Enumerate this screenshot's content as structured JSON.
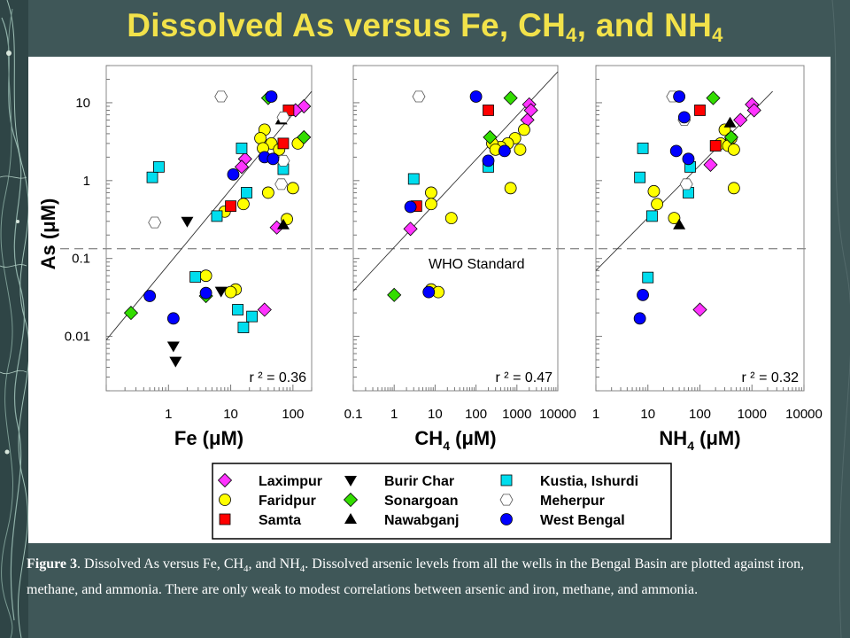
{
  "title": {
    "main": "Dissolved As versus Fe, CH",
    "sub1": "4",
    "mid": ", and NH",
    "sub2": "4"
  },
  "caption": {
    "label": "Figure 3",
    "text_before_sub1": ".  Dissolved As versus Fe, CH",
    "sub1": "4",
    "text_before_sub2": ", and NH",
    "sub2": "4",
    "text_after": ".  Dissolved arsenic levels from all the wells in the Bengal Basin are plotted against iron, methane, and ammonia.   There are only weak to modest correlations between arsenic and iron, methane, and ammonia."
  },
  "chart_data": {
    "type": "scatter",
    "y_axis": {
      "label": "As (μM)",
      "scale": "log",
      "range": [
        0.002,
        30
      ],
      "ticks": [
        0.01,
        0.1,
        1,
        10
      ],
      "tick_labels": [
        "0.01",
        "0.1",
        "1",
        "10"
      ]
    },
    "who_standard": {
      "label": "WHO Standard",
      "value": 0.133
    },
    "series_styles": {
      "Laximpur": {
        "shape": "diamond",
        "color": "#ff33ff"
      },
      "Faridpur": {
        "shape": "circle",
        "color": "#ffff00"
      },
      "Samta": {
        "shape": "square",
        "color": "#ff0000"
      },
      "Burir Char": {
        "shape": "triangle-down",
        "color": "#000000"
      },
      "Sonargoan": {
        "shape": "diamond",
        "color": "#33dd00"
      },
      "Nawabganj": {
        "shape": "triangle-up",
        "color": "#000000"
      },
      "Kustia, Ishurdi": {
        "shape": "square",
        "color": "#00ddee"
      },
      "Meherpur": {
        "shape": "hexagon",
        "color": "#ffffff"
      },
      "West Bengal": {
        "shape": "circle",
        "color": "#0000ff"
      }
    },
    "legend": {
      "placement": "bottom",
      "entries": [
        {
          "name": "Laximpur"
        },
        {
          "name": "Faridpur"
        },
        {
          "name": "Samta"
        },
        {
          "name": "Burir Char"
        },
        {
          "name": "Sonargoan"
        },
        {
          "name": "Nawabganj"
        },
        {
          "name": "Kustia, Ishurdi"
        },
        {
          "name": "Meherpur"
        },
        {
          "name": "West Bengal"
        }
      ]
    },
    "panels": [
      {
        "xlabel_main": "Fe (μM)",
        "xlabel_sub": "",
        "x_scale": "log",
        "x_range": [
          0.1,
          200
        ],
        "x_ticks": [
          1,
          10,
          100
        ],
        "x_tick_labels": [
          "1",
          "10",
          "100"
        ],
        "r2": "r ² = 0.36",
        "fit_line": [
          [
            0.1,
            0.009
          ],
          [
            200,
            14
          ]
        ],
        "points": [
          {
            "s": "Laximpur",
            "x": 150,
            "y": 9
          },
          {
            "s": "Laximpur",
            "x": 110,
            "y": 8
          },
          {
            "s": "Laximpur",
            "x": 17,
            "y": 1.9
          },
          {
            "s": "Laximpur",
            "x": 15,
            "y": 1.5
          },
          {
            "s": "Laximpur",
            "x": 55,
            "y": 0.25
          },
          {
            "s": "Laximpur",
            "x": 35,
            "y": 0.022
          },
          {
            "s": "Faridpur",
            "x": 35,
            "y": 4.5
          },
          {
            "s": "Faridpur",
            "x": 30,
            "y": 3.5
          },
          {
            "s": "Faridpur",
            "x": 45,
            "y": 3
          },
          {
            "s": "Faridpur",
            "x": 33,
            "y": 2.6
          },
          {
            "s": "Faridpur",
            "x": 60,
            "y": 2.5
          },
          {
            "s": "Faridpur",
            "x": 120,
            "y": 3
          },
          {
            "s": "Faridpur",
            "x": 100,
            "y": 0.8
          },
          {
            "s": "Faridpur",
            "x": 40,
            "y": 0.7
          },
          {
            "s": "Faridpur",
            "x": 16,
            "y": 0.5
          },
          {
            "s": "Faridpur",
            "x": 8,
            "y": 0.4
          },
          {
            "s": "Faridpur",
            "x": 80,
            "y": 0.32
          },
          {
            "s": "Faridpur",
            "x": 4,
            "y": 0.06
          },
          {
            "s": "Faridpur",
            "x": 12,
            "y": 0.04
          },
          {
            "s": "Faridpur",
            "x": 10,
            "y": 0.037
          },
          {
            "s": "Samta",
            "x": 85,
            "y": 8
          },
          {
            "s": "Samta",
            "x": 70,
            "y": 3
          },
          {
            "s": "Samta",
            "x": 10,
            "y": 0.47
          },
          {
            "s": "Burir Char",
            "x": 2,
            "y": 0.3
          },
          {
            "s": "Burir Char",
            "x": 7,
            "y": 0.038
          },
          {
            "s": "Burir Char",
            "x": 1.2,
            "y": 0.0075
          },
          {
            "s": "Burir Char",
            "x": 1.3,
            "y": 0.0048
          },
          {
            "s": "Sonargoan",
            "x": 40,
            "y": 11.5
          },
          {
            "s": "Sonargoan",
            "x": 150,
            "y": 3.6
          },
          {
            "s": "Sonargoan",
            "x": 0.25,
            "y": 0.02
          },
          {
            "s": "Sonargoan",
            "x": 4,
            "y": 0.033
          },
          {
            "s": "Nawabganj",
            "x": 70,
            "y": 0.27
          },
          {
            "s": "Nawabganj",
            "x": 65,
            "y": 6
          },
          {
            "s": "Kustia, Ishurdi",
            "x": 0.55,
            "y": 1.1
          },
          {
            "s": "Kustia, Ishurdi",
            "x": 0.7,
            "y": 1.5
          },
          {
            "s": "Kustia, Ishurdi",
            "x": 15,
            "y": 2.6
          },
          {
            "s": "Kustia, Ishurdi",
            "x": 18,
            "y": 0.7
          },
          {
            "s": "Kustia, Ishurdi",
            "x": 6,
            "y": 0.35
          },
          {
            "s": "Kustia, Ishurdi",
            "x": 2.7,
            "y": 0.058
          },
          {
            "s": "Kustia, Ishurdi",
            "x": 13,
            "y": 0.022
          },
          {
            "s": "Kustia, Ishurdi",
            "x": 22,
            "y": 0.018
          },
          {
            "s": "Kustia, Ishurdi",
            "x": 16,
            "y": 0.013
          },
          {
            "s": "Kustia, Ishurdi",
            "x": 70,
            "y": 1.4
          },
          {
            "s": "Meherpur",
            "x": 7,
            "y": 12
          },
          {
            "s": "Meherpur",
            "x": 70,
            "y": 6.5
          },
          {
            "s": "Meherpur",
            "x": 70,
            "y": 1.8
          },
          {
            "s": "Meherpur",
            "x": 65,
            "y": 0.9
          },
          {
            "s": "Meherpur",
            "x": 0.6,
            "y": 0.29
          },
          {
            "s": "West Bengal",
            "x": 45,
            "y": 12
          },
          {
            "s": "West Bengal",
            "x": 35,
            "y": 2
          },
          {
            "s": "West Bengal",
            "x": 48,
            "y": 1.9
          },
          {
            "s": "West Bengal",
            "x": 11,
            "y": 1.2
          },
          {
            "s": "West Bengal",
            "x": 0.5,
            "y": 0.033
          },
          {
            "s": "West Bengal",
            "x": 4,
            "y": 0.036
          },
          {
            "s": "West Bengal",
            "x": 1.2,
            "y": 0.017
          }
        ]
      },
      {
        "xlabel_main": "CH",
        "xlabel_sub": "4",
        "xlabel_suffix": " (μM)",
        "x_scale": "log",
        "x_range": [
          0.1,
          10000
        ],
        "x_ticks": [
          0.1,
          1,
          10,
          100,
          1000,
          10000
        ],
        "x_tick_labels": [
          "0.1",
          "1",
          "10",
          "100",
          "1000",
          "10000"
        ],
        "r2": "r ² = 0.47",
        "fit_line": [
          [
            0.1,
            0.038
          ],
          [
            10000,
            25
          ]
        ],
        "points": [
          {
            "s": "Laximpur",
            "x": 2000,
            "y": 9.5
          },
          {
            "s": "Laximpur",
            "x": 2200,
            "y": 8
          },
          {
            "s": "Laximpur",
            "x": 1800,
            "y": 6
          },
          {
            "s": "Laximpur",
            "x": 2.5,
            "y": 0.24
          },
          {
            "s": "Faridpur",
            "x": 1500,
            "y": 4.5
          },
          {
            "s": "Faridpur",
            "x": 900,
            "y": 3.5
          },
          {
            "s": "Faridpur",
            "x": 600,
            "y": 3
          },
          {
            "s": "Faridpur",
            "x": 400,
            "y": 2.7
          },
          {
            "s": "Faridpur",
            "x": 250,
            "y": 3
          },
          {
            "s": "Faridpur",
            "x": 300,
            "y": 2.5
          },
          {
            "s": "Faridpur",
            "x": 1200,
            "y": 2.5
          },
          {
            "s": "Faridpur",
            "x": 700,
            "y": 0.8
          },
          {
            "s": "Faridpur",
            "x": 8,
            "y": 0.7
          },
          {
            "s": "Faridpur",
            "x": 8,
            "y": 0.5
          },
          {
            "s": "Faridpur",
            "x": 25,
            "y": 0.33
          },
          {
            "s": "Faridpur",
            "x": 8,
            "y": 0.04
          },
          {
            "s": "Faridpur",
            "x": 12,
            "y": 0.037
          },
          {
            "s": "Samta",
            "x": 200,
            "y": 8
          },
          {
            "s": "Samta",
            "x": 3.5,
            "y": 0.47
          },
          {
            "s": "Sonargoan",
            "x": 700,
            "y": 11.5
          },
          {
            "s": "Sonargoan",
            "x": 220,
            "y": 3.6
          },
          {
            "s": "Sonargoan",
            "x": 1,
            "y": 0.034
          },
          {
            "s": "Kustia, Ishurdi",
            "x": 3,
            "y": 1.05
          },
          {
            "s": "Kustia, Ishurdi",
            "x": 200,
            "y": 1.5
          },
          {
            "s": "Meherpur",
            "x": 4,
            "y": 12
          },
          {
            "s": "West Bengal",
            "x": 100,
            "y": 12
          },
          {
            "s": "West Bengal",
            "x": 200,
            "y": 1.8
          },
          {
            "s": "West Bengal",
            "x": 500,
            "y": 2.4
          },
          {
            "s": "West Bengal",
            "x": 2.5,
            "y": 0.46
          },
          {
            "s": "West Bengal",
            "x": 7,
            "y": 0.037
          }
        ]
      },
      {
        "xlabel_main": "NH",
        "xlabel_sub": "4",
        "xlabel_suffix": " (μM)",
        "x_scale": "log",
        "x_range": [
          1,
          10000
        ],
        "x_ticks": [
          1,
          10,
          100,
          1000,
          10000
        ],
        "x_tick_labels": [
          "1",
          "10",
          "100",
          "1000",
          "10000"
        ],
        "r2": "r ² = 0.32",
        "fit_line": [
          [
            1,
            0.07
          ],
          [
            2500,
            14
          ]
        ],
        "points": [
          {
            "s": "Laximpur",
            "x": 1000,
            "y": 9.5
          },
          {
            "s": "Laximpur",
            "x": 1100,
            "y": 8
          },
          {
            "s": "Laximpur",
            "x": 600,
            "y": 6
          },
          {
            "s": "Laximpur",
            "x": 160,
            "y": 1.6
          },
          {
            "s": "Laximpur",
            "x": 100,
            "y": 0.022
          },
          {
            "s": "Faridpur",
            "x": 300,
            "y": 4.5
          },
          {
            "s": "Faridpur",
            "x": 400,
            "y": 3.5
          },
          {
            "s": "Faridpur",
            "x": 250,
            "y": 3
          },
          {
            "s": "Faridpur",
            "x": 350,
            "y": 2.8
          },
          {
            "s": "Faridpur",
            "x": 450,
            "y": 2.5
          },
          {
            "s": "Faridpur",
            "x": 450,
            "y": 0.8
          },
          {
            "s": "Faridpur",
            "x": 13,
            "y": 0.73
          },
          {
            "s": "Faridpur",
            "x": 15,
            "y": 0.5
          },
          {
            "s": "Faridpur",
            "x": 32,
            "y": 0.33
          },
          {
            "s": "Samta",
            "x": 100,
            "y": 8
          },
          {
            "s": "Samta",
            "x": 200,
            "y": 2.8
          },
          {
            "s": "Sonargoan",
            "x": 180,
            "y": 11.5
          },
          {
            "s": "Sonargoan",
            "x": 400,
            "y": 3.6
          },
          {
            "s": "Nawabganj",
            "x": 380,
            "y": 5.5
          },
          {
            "s": "Nawabganj",
            "x": 40,
            "y": 0.27
          },
          {
            "s": "Kustia, Ishurdi",
            "x": 8,
            "y": 2.6
          },
          {
            "s": "Kustia, Ishurdi",
            "x": 7,
            "y": 1.1
          },
          {
            "s": "Kustia, Ishurdi",
            "x": 65,
            "y": 1.5
          },
          {
            "s": "Kustia, Ishurdi",
            "x": 60,
            "y": 0.7
          },
          {
            "s": "Kustia, Ishurdi",
            "x": 12,
            "y": 0.35
          },
          {
            "s": "Kustia, Ishurdi",
            "x": 10,
            "y": 0.057
          },
          {
            "s": "Meherpur",
            "x": 30,
            "y": 12
          },
          {
            "s": "Meherpur",
            "x": 50,
            "y": 6
          },
          {
            "s": "Meherpur",
            "x": 55,
            "y": 0.9
          },
          {
            "s": "West Bengal",
            "x": 40,
            "y": 12
          },
          {
            "s": "West Bengal",
            "x": 50,
            "y": 6.5
          },
          {
            "s": "West Bengal",
            "x": 35,
            "y": 2.4
          },
          {
            "s": "West Bengal",
            "x": 60,
            "y": 1.9
          },
          {
            "s": "West Bengal",
            "x": 8,
            "y": 0.034
          },
          {
            "s": "West Bengal",
            "x": 7,
            "y": 0.017
          }
        ]
      }
    ]
  }
}
